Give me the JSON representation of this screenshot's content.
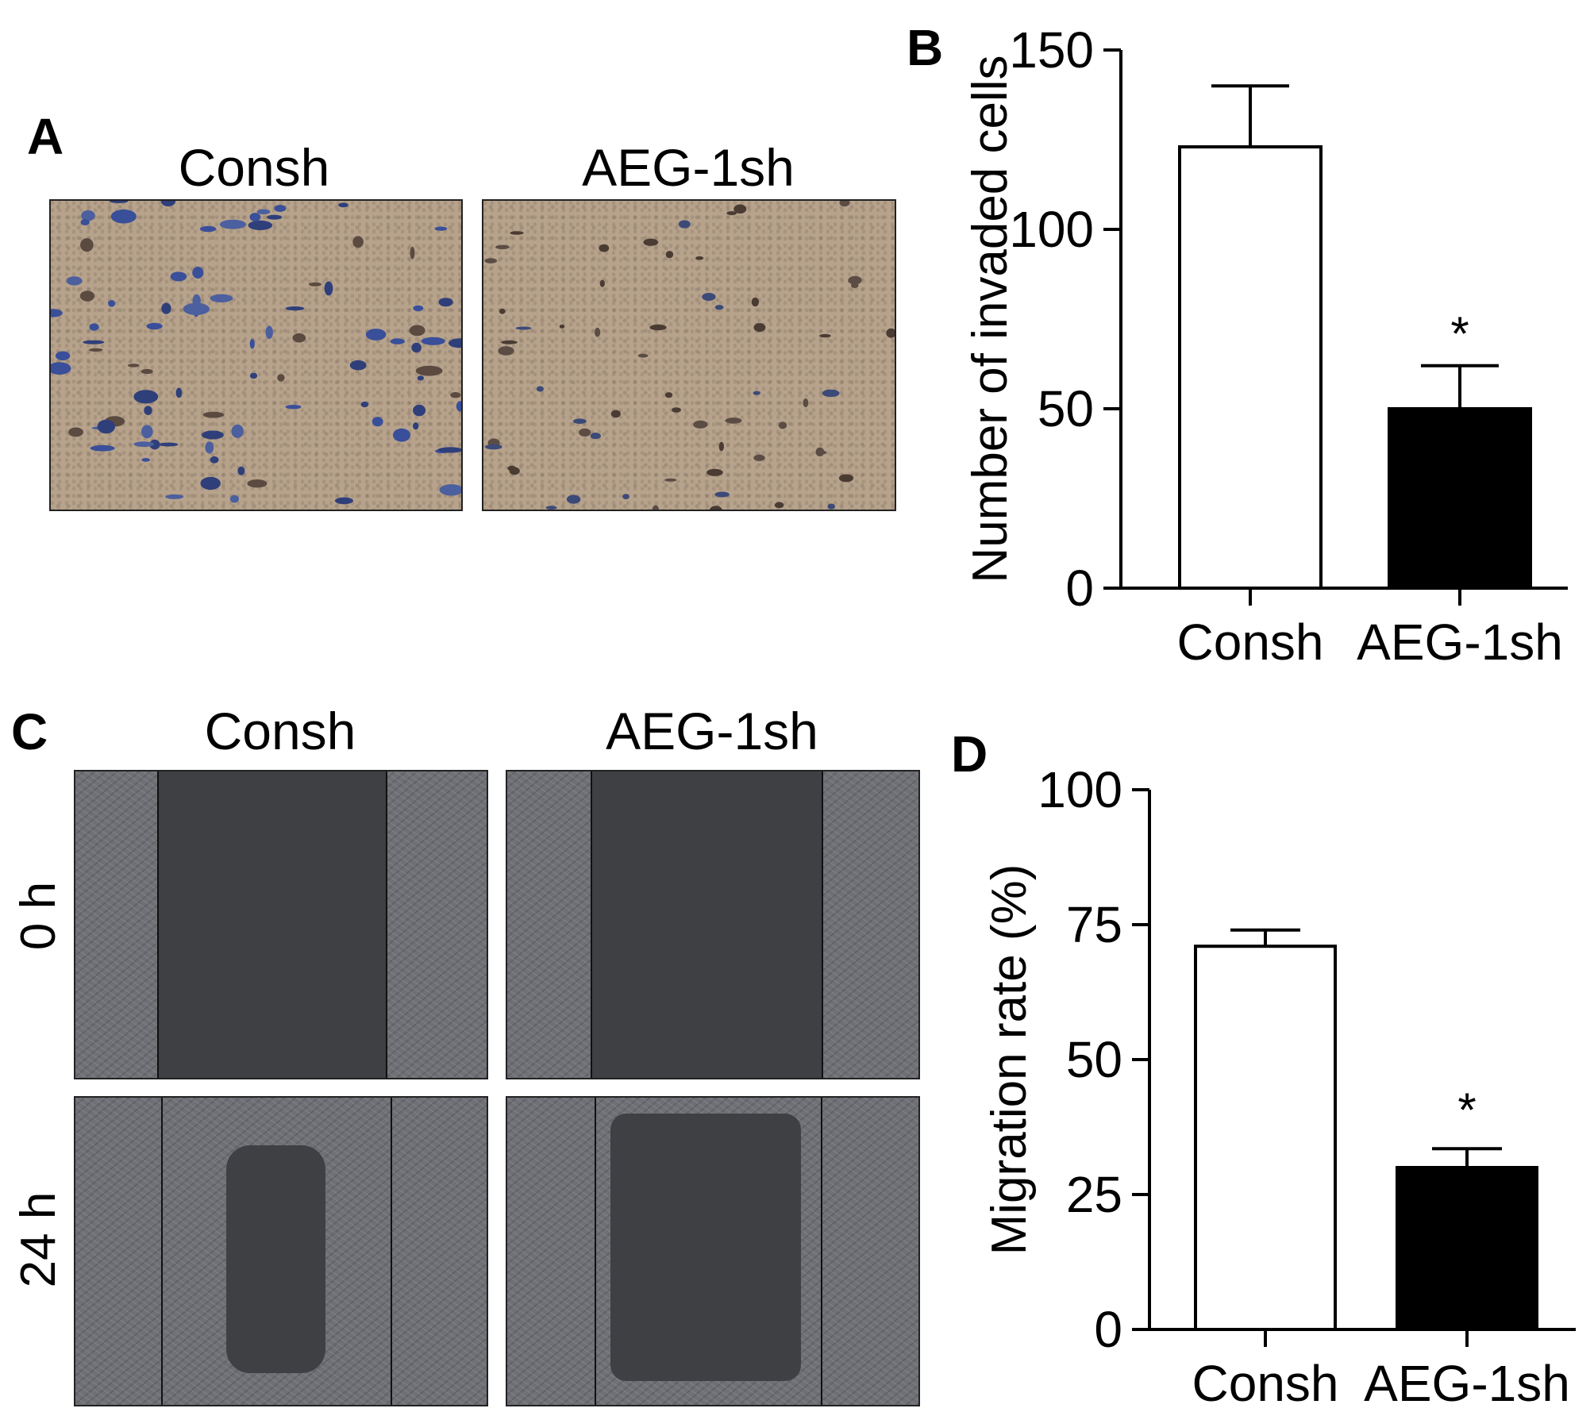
{
  "panels": {
    "a": {
      "letter": "A",
      "columns": [
        "Consh",
        "AEG-1sh"
      ],
      "cell_color": "#3a4f9a"
    },
    "b": {
      "letter": "B"
    },
    "c": {
      "letter": "C",
      "columns": [
        "Consh",
        "AEG-1sh"
      ],
      "rows": [
        "0 h",
        "24 h"
      ]
    },
    "d": {
      "letter": "D"
    }
  },
  "chart_data": [
    {
      "panel": "B",
      "type": "bar",
      "categories": [
        "Consh",
        "AEG-1sh"
      ],
      "values": [
        123,
        50
      ],
      "errors": [
        17,
        12
      ],
      "significance": [
        "",
        "*"
      ],
      "bar_colors": [
        "#ffffff",
        "#000000"
      ],
      "xlabel": "",
      "ylabel": "Number of invaded cells",
      "ylim": [
        0,
        150
      ],
      "yticks": [
        0,
        50,
        100,
        150
      ],
      "grid": false
    },
    {
      "panel": "D",
      "type": "bar",
      "categories": [
        "Consh",
        "AEG-1sh"
      ],
      "values": [
        71,
        30
      ],
      "errors": [
        3,
        3.5
      ],
      "significance": [
        "",
        "*"
      ],
      "bar_colors": [
        "#ffffff",
        "#000000"
      ],
      "xlabel": "",
      "ylabel": "Migration rate  (%)",
      "ylim": [
        0,
        100
      ],
      "yticks": [
        0,
        25,
        50,
        75,
        100
      ],
      "grid": false
    }
  ]
}
